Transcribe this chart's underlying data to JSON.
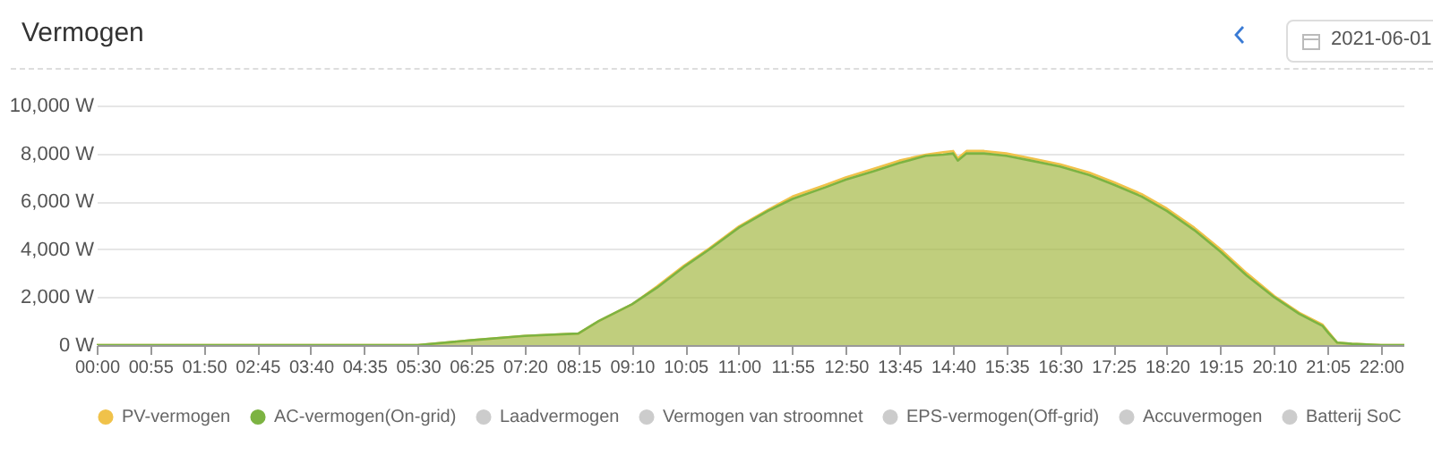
{
  "chart_data": {
    "type": "area",
    "title": "Vermogen",
    "annotations": [
      "2021-06-01"
    ],
    "x": [
      0,
      1,
      2,
      3,
      4,
      5,
      5.5,
      6.42,
      7.33,
      8.25,
      8.6,
      9.17,
      9.6,
      10.08,
      10.5,
      11,
      11.5,
      11.92,
      12.5,
      12.83,
      13.3,
      13.75,
      14.2,
      14.5,
      14.67,
      14.75,
      14.9,
      15.2,
      15.58,
      16,
      16.5,
      17,
      17.42,
      17.9,
      18.33,
      18.8,
      19.25,
      19.7,
      20.17,
      20.6,
      21,
      21.1,
      21.25,
      21.5,
      22,
      22.4
    ],
    "series": [
      {
        "name": "PV-vermogen",
        "color": "#f0c24a",
        "values": [
          0,
          0,
          0,
          0,
          0,
          0,
          0,
          200,
          380,
          480,
          1000,
          1700,
          2450,
          3350,
          4050,
          4950,
          5650,
          6200,
          6700,
          7000,
          7350,
          7700,
          7950,
          8050,
          8100,
          7800,
          8100,
          8100,
          8000,
          7800,
          7550,
          7200,
          6800,
          6300,
          5700,
          4900,
          4000,
          3000,
          2050,
          1350,
          850,
          550,
          100,
          50,
          0,
          0
        ]
      },
      {
        "name": "AC-vermogen(On-grid)",
        "color": "#7cb342",
        "values": [
          0,
          0,
          0,
          0,
          0,
          0,
          0,
          200,
          380,
          480,
          1000,
          1700,
          2400,
          3300,
          4000,
          4900,
          5600,
          6100,
          6600,
          6900,
          7250,
          7600,
          7900,
          7950,
          8000,
          7700,
          8000,
          8000,
          7900,
          7700,
          7450,
          7100,
          6700,
          6200,
          5600,
          4800,
          3900,
          2900,
          2000,
          1300,
          800,
          500,
          100,
          50,
          0,
          0
        ]
      },
      {
        "name": "Laadvermogen",
        "color": "#cccccc",
        "values": [
          null,
          null,
          null,
          null,
          null,
          null,
          null,
          null,
          null,
          null,
          null,
          null,
          null,
          null,
          null,
          null,
          null,
          null,
          null,
          null,
          null,
          null,
          null,
          null,
          null,
          null,
          null,
          null,
          null,
          null,
          null,
          null,
          null,
          null,
          null,
          null,
          null,
          null,
          null,
          null,
          null,
          null,
          null,
          null,
          null,
          null
        ]
      },
      {
        "name": "Vermogen van stroomnet",
        "color": "#cccccc",
        "values": [
          null,
          null,
          null,
          null,
          null,
          null,
          null,
          null,
          null,
          null,
          null,
          null,
          null,
          null,
          null,
          null,
          null,
          null,
          null,
          null,
          null,
          null,
          null,
          null,
          null,
          null,
          null,
          null,
          null,
          null,
          null,
          null,
          null,
          null,
          null,
          null,
          null,
          null,
          null,
          null,
          null,
          null,
          null,
          null,
          null,
          null
        ]
      },
      {
        "name": "EPS-vermogen(Off-grid)",
        "color": "#cccccc",
        "values": [
          null,
          null,
          null,
          null,
          null,
          null,
          null,
          null,
          null,
          null,
          null,
          null,
          null,
          null,
          null,
          null,
          null,
          null,
          null,
          null,
          null,
          null,
          null,
          null,
          null,
          null,
          null,
          null,
          null,
          null,
          null,
          null,
          null,
          null,
          null,
          null,
          null,
          null,
          null,
          null,
          null,
          null,
          null,
          null,
          null,
          null
        ]
      },
      {
        "name": "Accuvermogen",
        "color": "#cccccc",
        "values": [
          null,
          null,
          null,
          null,
          null,
          null,
          null,
          null,
          null,
          null,
          null,
          null,
          null,
          null,
          null,
          null,
          null,
          null,
          null,
          null,
          null,
          null,
          null,
          null,
          null,
          null,
          null,
          null,
          null,
          null,
          null,
          null,
          null,
          null,
          null,
          null,
          null,
          null,
          null,
          null,
          null,
          null,
          null,
          null,
          null,
          null
        ]
      },
      {
        "name": "Batterij SoC",
        "color": "#cccccc",
        "values": [
          null,
          null,
          null,
          null,
          null,
          null,
          null,
          null,
          null,
          null,
          null,
          null,
          null,
          null,
          null,
          null,
          null,
          null,
          null,
          null,
          null,
          null,
          null,
          null,
          null,
          null,
          null,
          null,
          null,
          null,
          null,
          null,
          null,
          null,
          null,
          null,
          null,
          null,
          null,
          null,
          null,
          null,
          null,
          null,
          null,
          null
        ]
      }
    ],
    "xlim": [
      0,
      22.4
    ],
    "xticks": [
      {
        "value": 0,
        "label": "00:00"
      },
      {
        "value": 0.9167,
        "label": "00:55"
      },
      {
        "value": 1.8333,
        "label": "01:50"
      },
      {
        "value": 2.75,
        "label": "02:45"
      },
      {
        "value": 3.6667,
        "label": "03:40"
      },
      {
        "value": 4.5833,
        "label": "04:35"
      },
      {
        "value": 5.5,
        "label": "05:30"
      },
      {
        "value": 6.4167,
        "label": "06:25"
      },
      {
        "value": 7.3333,
        "label": "07:20"
      },
      {
        "value": 8.25,
        "label": "08:15"
      },
      {
        "value": 9.1667,
        "label": "09:10"
      },
      {
        "value": 10.0833,
        "label": "10:05"
      },
      {
        "value": 11,
        "label": "11:00"
      },
      {
        "value": 11.9167,
        "label": "11:55"
      },
      {
        "value": 12.8333,
        "label": "12:50"
      },
      {
        "value": 13.75,
        "label": "13:45"
      },
      {
        "value": 14.6667,
        "label": "14:40"
      },
      {
        "value": 15.5833,
        "label": "15:35"
      },
      {
        "value": 16.5,
        "label": "16:30"
      },
      {
        "value": 17.4167,
        "label": "17:25"
      },
      {
        "value": 18.3333,
        "label": "18:20"
      },
      {
        "value": 19.25,
        "label": "19:15"
      },
      {
        "value": 20.1667,
        "label": "20:10"
      },
      {
        "value": 21.0833,
        "label": "21:05"
      },
      {
        "value": 22,
        "label": "22:00"
      }
    ],
    "ylim": [
      0,
      10000
    ],
    "yticks": [
      {
        "value": 0,
        "label": "0 W"
      },
      {
        "value": 2000,
        "label": "2,000 W"
      },
      {
        "value": 4000,
        "label": "4,000 W"
      },
      {
        "value": 6000,
        "label": "6,000 W"
      },
      {
        "value": 8000,
        "label": "8,000 W"
      },
      {
        "value": 10000,
        "label": "10,000 W"
      }
    ],
    "grid": "y",
    "legend": "bottom"
  }
}
